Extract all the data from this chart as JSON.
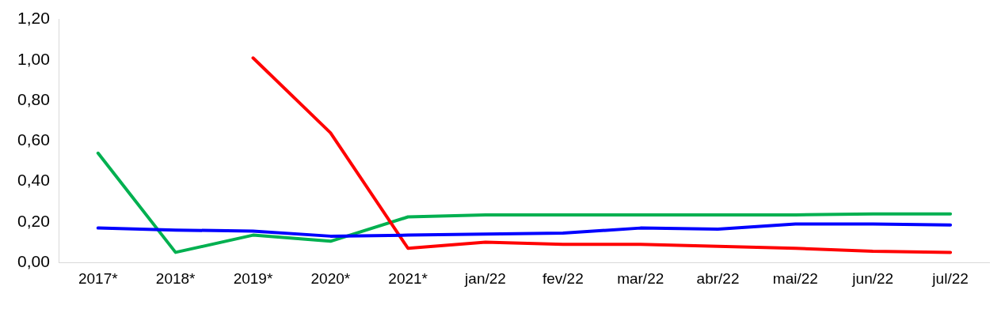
{
  "chart_data": {
    "type": "line",
    "categories": [
      "2017*",
      "2018*",
      "2019*",
      "2020*",
      "2021*",
      "jan/22",
      "fev/22",
      "mar/22",
      "abr/22",
      "mai/22",
      "jun/22",
      "jul/22"
    ],
    "series": [
      {
        "color": "#0000ff",
        "values": [
          0.17,
          0.16,
          0.155,
          0.13,
          0.135,
          0.14,
          0.145,
          0.17,
          0.165,
          0.19,
          0.19,
          0.185
        ]
      },
      {
        "color": "#ff0000",
        "values": [
          null,
          null,
          1.01,
          0.64,
          0.07,
          0.1,
          0.09,
          0.09,
          0.08,
          0.07,
          0.055,
          0.05
        ]
      },
      {
        "color": "#00b050",
        "values": [
          0.54,
          0.05,
          0.135,
          0.105,
          0.225,
          0.235,
          0.235,
          0.235,
          0.235,
          0.235,
          0.24,
          0.24
        ]
      }
    ],
    "ylim": [
      0,
      1.2
    ],
    "yticks": [
      {
        "value": 0,
        "label": "0,00"
      },
      {
        "value": 0.2,
        "label": "0,20"
      },
      {
        "value": 0.4,
        "label": "0,40"
      },
      {
        "value": 0.6,
        "label": "0,60"
      },
      {
        "value": 0.8,
        "label": "0,80"
      },
      {
        "value": 1,
        "label": "1,00"
      },
      {
        "value": 1.2,
        "label": "1,20"
      }
    ],
    "grid": false,
    "legend": false,
    "marker": "none",
    "line_style": "solid"
  }
}
